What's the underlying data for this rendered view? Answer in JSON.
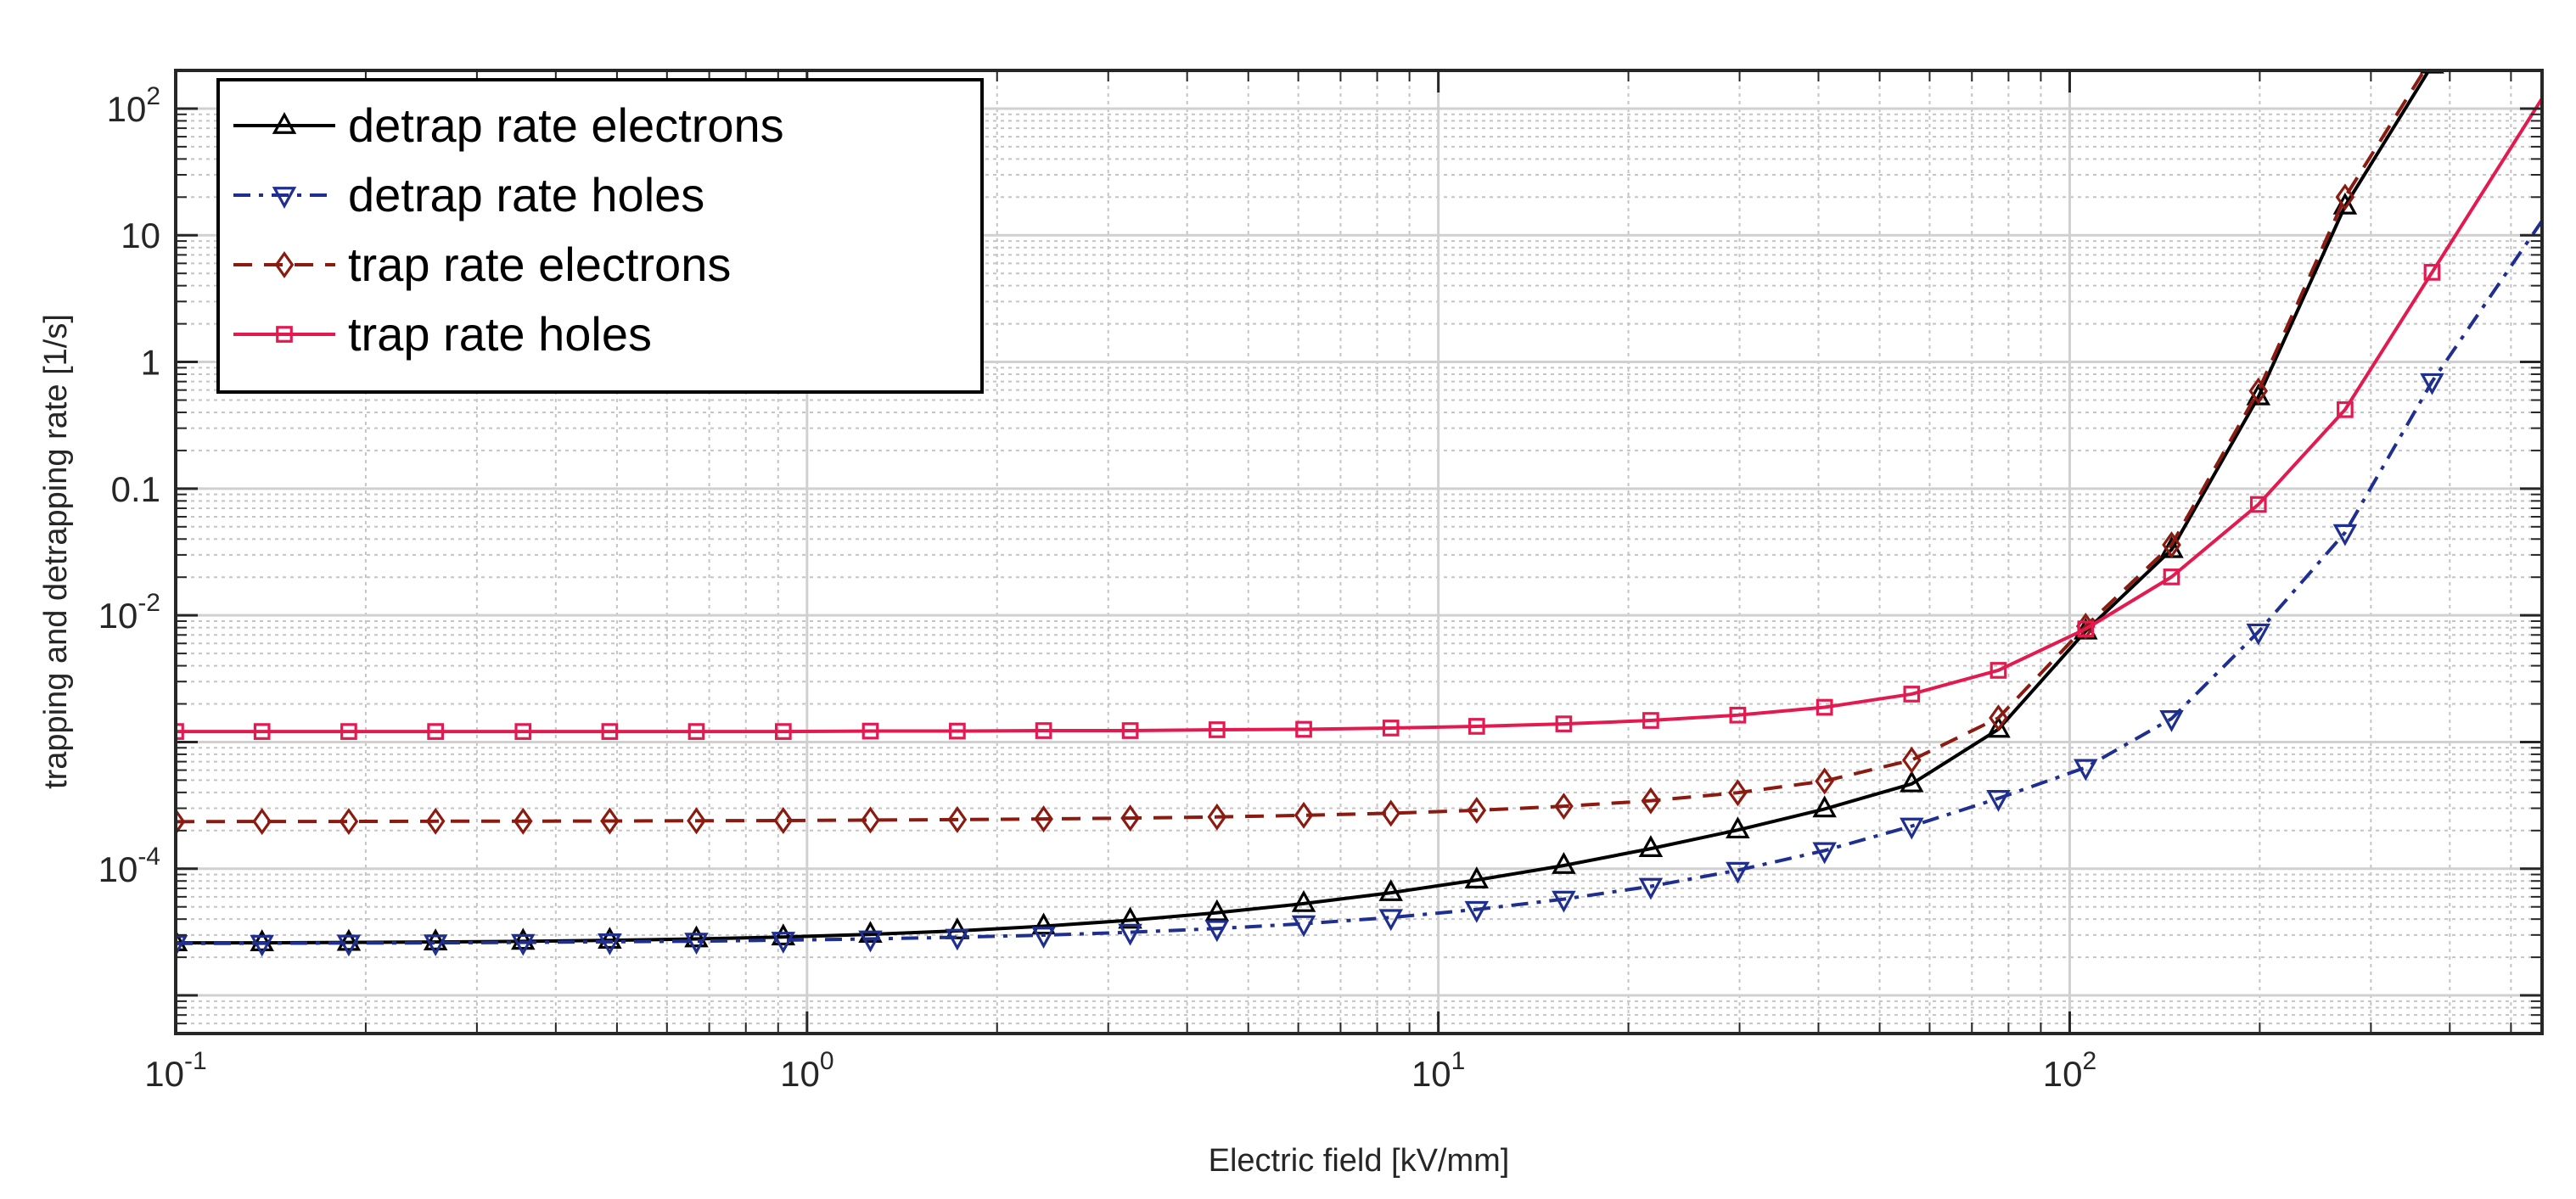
{
  "chart_data": {
    "type": "line",
    "title": "",
    "xlabel": "Electric field [kV/mm]",
    "ylabel": "trapping and detrapping rate [1/s]",
    "xscale": "log",
    "yscale": "log",
    "xlim": [
      0.1,
      560
    ],
    "ylim": [
      5e-06,
      200
    ],
    "grid": true,
    "minor_grid": true,
    "legend_position": "top-left",
    "x_ticks": [
      {
        "value": 0.1,
        "base": "10",
        "exp": "-1"
      },
      {
        "value": 1,
        "base": "10",
        "exp": "0"
      },
      {
        "value": 10,
        "base": "10",
        "exp": "1"
      },
      {
        "value": 100,
        "base": "10",
        "exp": "2"
      }
    ],
    "y_ticks": [
      {
        "value": 100,
        "base": "10",
        "exp": "2"
      },
      {
        "value": 10,
        "base": "10",
        "exp": ""
      },
      {
        "value": 1,
        "base": "1",
        "exp": ""
      },
      {
        "value": 0.1,
        "base": "0.1",
        "exp": ""
      },
      {
        "value": 0.01,
        "base": "10",
        "exp": "-2"
      },
      {
        "value": 0.0001,
        "base": "10",
        "exp": "-4"
      }
    ],
    "x": [
      0.1,
      0.137,
      0.188,
      0.258,
      0.355,
      0.487,
      0.668,
      0.917,
      1.26,
      1.73,
      2.37,
      3.25,
      4.46,
      6.12,
      8.41,
      11.5,
      15.8,
      21.7,
      29.8,
      40.9,
      56.2,
      77.1,
      106,
      145,
      199,
      273,
      375,
      560
    ],
    "series": [
      {
        "name": "detrap rate electrons",
        "color": "#000000",
        "dash": "solid",
        "marker": "triangle-up",
        "values": [
          2.6e-05,
          2.6e-05,
          2.62e-05,
          2.64e-05,
          2.67e-05,
          2.72e-05,
          2.79e-05,
          2.89e-05,
          3.03e-05,
          3.23e-05,
          3.52e-05,
          3.92e-05,
          4.49e-05,
          5.3e-05,
          6.46e-05,
          8.14e-05,
          0.000106,
          0.000144,
          0.000202,
          0.000296,
          0.000467,
          0.00126,
          0.0075,
          0.033,
          0.53,
          17,
          220,
          null
        ]
      },
      {
        "name": "detrap rate holes",
        "color": "#1f2f8f",
        "dash": "dashdot",
        "marker": "triangle-down",
        "values": [
          2.57e-05,
          2.58e-05,
          2.59e-05,
          2.6e-05,
          2.62e-05,
          2.65e-05,
          2.68e-05,
          2.73e-05,
          2.79e-05,
          2.88e-05,
          2.99e-05,
          3.15e-05,
          3.37e-05,
          3.68e-05,
          4.12e-05,
          4.77e-05,
          5.75e-05,
          7.26e-05,
          9.72e-05,
          0.000139,
          0.000217,
          0.000359,
          0.00063,
          0.00153,
          0.0074,
          0.045,
          0.7,
          13
        ]
      },
      {
        "name": "trap rate electrons",
        "color": "#8b1a10",
        "dash": "dashed",
        "marker": "diamond",
        "values": [
          0.000235,
          0.000236,
          0.000236,
          0.000237,
          0.000237,
          0.000238,
          0.000239,
          0.00024,
          0.000242,
          0.000244,
          0.000247,
          0.000251,
          0.000256,
          0.000264,
          0.000274,
          0.000289,
          0.000311,
          0.000344,
          0.000398,
          0.000492,
          0.00072,
          0.00155,
          0.0082,
          0.036,
          0.59,
          20,
          250,
          null
        ]
      },
      {
        "name": "trap rate holes",
        "color": "#e31a50",
        "dash": "solid",
        "marker": "square",
        "values": [
          0.00121,
          0.00121,
          0.00121,
          0.00121,
          0.00121,
          0.00121,
          0.00121,
          0.00121,
          0.00122,
          0.00122,
          0.00123,
          0.00123,
          0.00125,
          0.00126,
          0.00129,
          0.00133,
          0.00139,
          0.00148,
          0.00163,
          0.00188,
          0.00239,
          0.00368,
          0.0078,
          0.0201,
          0.075,
          0.42,
          5.1,
          120
        ]
      }
    ]
  }
}
